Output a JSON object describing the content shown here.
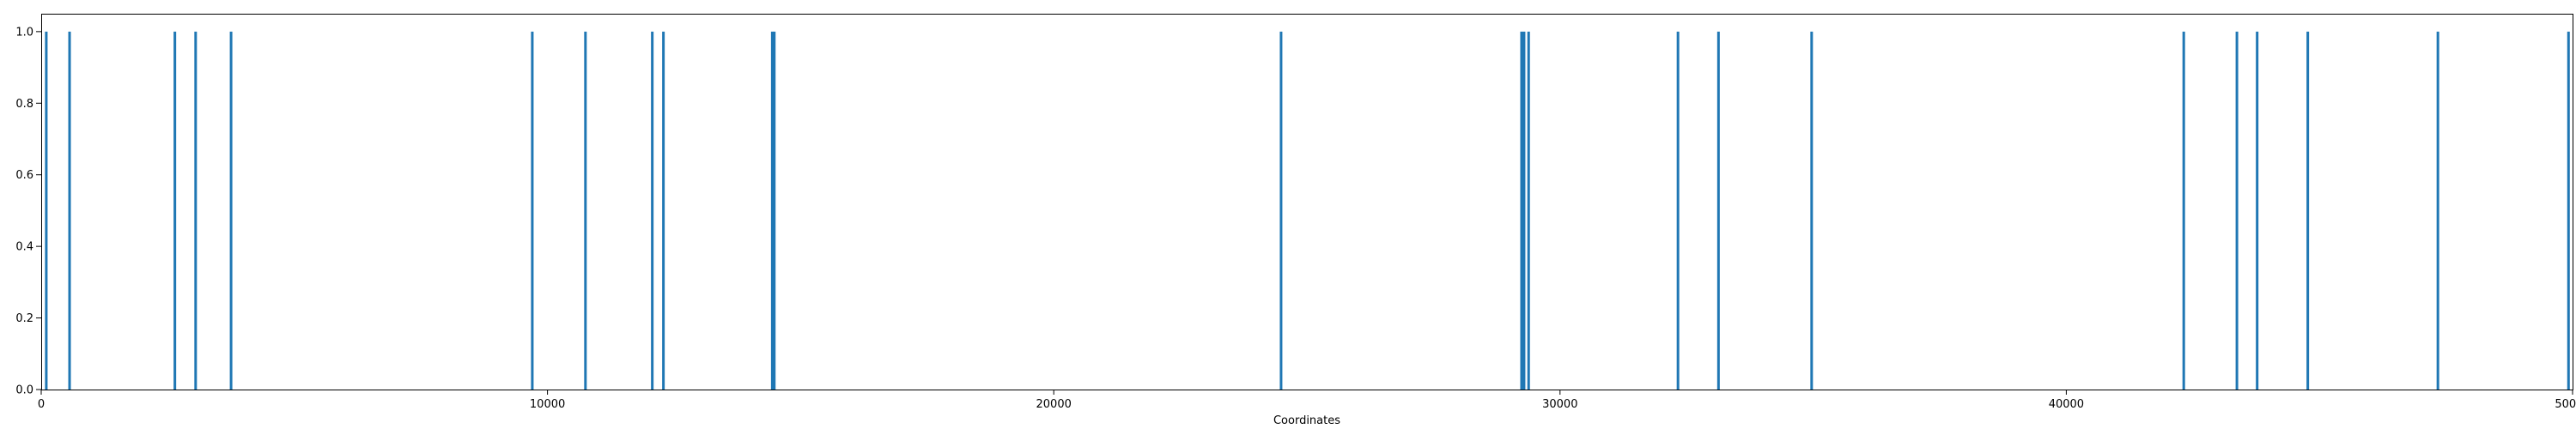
{
  "chart_data": {
    "type": "bar",
    "title": "",
    "xlabel": "Coordinates",
    "ylabel": "",
    "xlim": [
      0,
      50000
    ],
    "ylim": [
      0,
      1.05
    ],
    "grid": false,
    "series_color": "#1f77b4",
    "x_ticks": [
      {
        "value": 0,
        "label": "0"
      },
      {
        "value": 10000,
        "label": "10000"
      },
      {
        "value": 20000,
        "label": "20000"
      },
      {
        "value": 30000,
        "label": "30000"
      },
      {
        "value": 40000,
        "label": "40000"
      },
      {
        "value": 50000,
        "label": "50000"
      }
    ],
    "y_ticks": [
      {
        "value": 0.0,
        "label": "0.0"
      },
      {
        "value": 0.2,
        "label": "0.2"
      },
      {
        "value": 0.4,
        "label": "0.4"
      },
      {
        "value": 0.6,
        "label": "0.6"
      },
      {
        "value": 0.8,
        "label": "0.8"
      },
      {
        "value": 1.0,
        "label": "1.0"
      }
    ],
    "x": [
      100,
      560,
      2640,
      3050,
      3750,
      9700,
      10750,
      12070,
      12290,
      14440,
      14480,
      24490,
      29240,
      29290,
      29380,
      32330,
      33130,
      34970,
      42320,
      43370,
      43770,
      44770,
      47340,
      49920
    ],
    "values": [
      1,
      1,
      1,
      1,
      1,
      1,
      1,
      1,
      1,
      1,
      1,
      1,
      1,
      1,
      1,
      1,
      1,
      1,
      1,
      1,
      1,
      1,
      1,
      1
    ]
  }
}
